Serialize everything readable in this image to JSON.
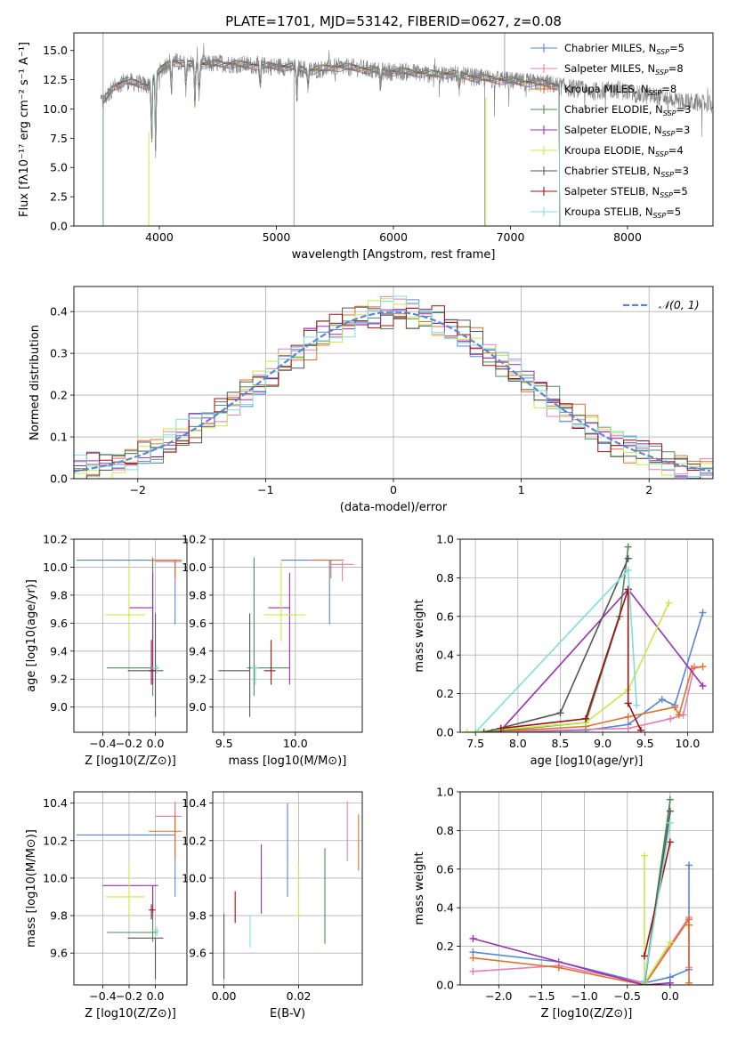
{
  "title": "PLATE=1701, MJD=53142, FIBERID=0627, z=0.08",
  "colors": {
    "chabrier_miles": "#5b86d6",
    "salpeter_miles": "#e57eb0",
    "kroupa_miles": "#e0702a",
    "chabrier_elodie": "#4f8a55",
    "salpeter_elodie": "#9a2fb0",
    "kroupa_elodie": "#c8e84a",
    "chabrier_stelib": "#555555",
    "salpeter_stelib": "#a01010",
    "kroupa_stelib": "#7fdede",
    "normal_curve": "#5b86d6"
  },
  "legend_spectrum": [
    {
      "pre": "Chabrier MILES, N",
      "sub": "SSP",
      "post": "=5",
      "color": "chabrier_miles"
    },
    {
      "pre": "Salpeter MILES, N",
      "sub": "SSP",
      "post": "=8",
      "color": "salpeter_miles"
    },
    {
      "pre": "Kroupa MILES, N",
      "sub": "SSP",
      "post": "=8",
      "color": "kroupa_miles"
    },
    {
      "pre": "Chabrier ELODIE, N",
      "sub": "SSP",
      "post": "=3",
      "color": "chabrier_elodie"
    },
    {
      "pre": "Salpeter ELODIE, N",
      "sub": "SSP",
      "post": "=3",
      "color": "salpeter_elodie"
    },
    {
      "pre": "Kroupa ELODIE, N",
      "sub": "SSP",
      "post": "=4",
      "color": "kroupa_elodie"
    },
    {
      "pre": "Chabrier STELIB, N",
      "sub": "SSP",
      "post": "=3",
      "color": "chabrier_stelib"
    },
    {
      "pre": "Salpeter STELIB, N",
      "sub": "SSP",
      "post": "=5",
      "color": "salpeter_stelib"
    },
    {
      "pre": "Kroupa STELIB, N",
      "sub": "SSP",
      "post": "=5",
      "color": "kroupa_stelib"
    }
  ],
  "legend_hist": "𝒩(0, 1)",
  "chart_data": [
    {
      "id": "spectrum",
      "type": "line",
      "xlabel": "wavelength [Angstrom, rest frame]",
      "ylabel": "Flux [fλ10⁻¹⁷ erg cm⁻² s⁻¹ A⁻¹]",
      "xlim": [
        3270,
        8730
      ],
      "ylim": [
        0,
        16.5
      ],
      "xticks": [
        4000,
        5000,
        6000,
        7000,
        8000
      ],
      "yticks": [
        0.0,
        2.5,
        5.0,
        7.5,
        10.0,
        12.5,
        15.0
      ],
      "grid": false,
      "legend": "top-right",
      "observed_envelope": {
        "x": [
          3520,
          3600,
          3700,
          3800,
          3900,
          4000,
          4100,
          4200,
          4300,
          4400,
          4500,
          4700,
          4900,
          5100,
          5300,
          5500,
          5700,
          5900,
          6100,
          6300,
          6500,
          6700,
          6900,
          7100,
          7300,
          7500,
          7700,
          7900,
          8100,
          8300,
          8500,
          8700
        ],
        "y": [
          10.6,
          11.8,
          12.4,
          12.2,
          12.0,
          13.2,
          14.2,
          13.8,
          13.9,
          13.8,
          13.9,
          13.8,
          13.7,
          13.6,
          13.3,
          13.6,
          13.5,
          13.2,
          13.2,
          13.0,
          13.0,
          12.7,
          12.5,
          12.3,
          12.2,
          11.8,
          11.5,
          11.7,
          11.2,
          11.0,
          10.6,
          10.4
        ]
      },
      "models_range": [
        3520,
        7420
      ]
    },
    {
      "id": "residuals",
      "type": "histogram",
      "xlabel": "(data-model)/error",
      "ylabel": "Normed distribution",
      "xlim": [
        -2.5,
        2.5
      ],
      "ylim": [
        0,
        0.46
      ],
      "xticks": [
        -2,
        -1,
        0,
        1,
        2
      ],
      "yticks": [
        0.0,
        0.1,
        0.2,
        0.3,
        0.4
      ],
      "grid": true,
      "bin_width": 0.1,
      "legend": "top-right"
    },
    {
      "id": "age_vs_Z",
      "type": "errorbar",
      "xlabel": "Z [log10(Z/Z⊙)]",
      "ylabel": "age  [log10(age/yr)]",
      "xlim": [
        -0.62,
        0.24
      ],
      "ylim": [
        8.82,
        10.2
      ],
      "xticks": [
        -0.4,
        -0.2,
        0.0
      ],
      "yticks": [
        9.0,
        9.2,
        9.4,
        9.6,
        9.8,
        10.0,
        10.2
      ],
      "grid": true,
      "points": [
        {
          "color": "chabrier_miles",
          "x": 0.15,
          "xerr": [
            0.75,
            0.0
          ],
          "y": 10.05,
          "yerr": [
            0.46,
            0.0
          ]
        },
        {
          "color": "salpeter_miles",
          "x": 0.15,
          "xerr": [
            0.15,
            0.05
          ],
          "y": 10.04,
          "yerr": [
            0.14,
            0.01
          ]
        },
        {
          "color": "kroupa_miles",
          "x": 0.15,
          "xerr": [
            0.2,
            0.05
          ],
          "y": 10.05,
          "yerr": [
            0.13,
            0.0
          ]
        },
        {
          "color": "chabrier_elodie",
          "x": -0.02,
          "xerr": [
            0.35,
            0.04
          ],
          "y": 9.28,
          "yerr": [
            0.2,
            0.79
          ]
        },
        {
          "color": "salpeter_elodie",
          "x": -0.02,
          "xerr": [
            0.18,
            0.0
          ],
          "y": 9.71,
          "yerr": [
            0.55,
            0.25
          ]
        },
        {
          "color": "kroupa_elodie",
          "x": -0.2,
          "xerr": [
            0.18,
            0.12
          ],
          "y": 9.66,
          "yerr": [
            0.19,
            0.38
          ]
        },
        {
          "color": "chabrier_stelib",
          "x": 0.0,
          "xerr": [
            0.21,
            0.06
          ],
          "y": 9.26,
          "yerr": [
            0.33,
            0.41
          ]
        },
        {
          "color": "salpeter_stelib",
          "x": -0.03,
          "xerr": [
            0.02,
            0.03
          ],
          "y": 9.26,
          "yerr": [
            0.1,
            0.22
          ]
        },
        {
          "color": "kroupa_stelib",
          "x": 0.01,
          "xerr": [
            0.04,
            0.02
          ],
          "y": 9.28,
          "yerr": [
            0.04,
            0.02
          ]
        }
      ]
    },
    {
      "id": "age_vs_mass",
      "type": "errorbar",
      "xlabel": "mass [log10(M/M⊙)]",
      "ylabel": "",
      "xlim": [
        9.42,
        10.47
      ],
      "ylim": [
        8.82,
        10.2
      ],
      "xticks": [
        9.5,
        10.0
      ],
      "yticks": [
        9.0,
        9.2,
        9.4,
        9.6,
        9.8,
        10.0,
        10.2
      ],
      "grid": true,
      "points": [
        {
          "color": "chabrier_miles",
          "x": 10.24,
          "xerr": [
            0.34,
            0.0
          ],
          "y": 10.05,
          "yerr": [
            0.46,
            0.0
          ]
        },
        {
          "color": "salpeter_miles",
          "x": 10.33,
          "xerr": [
            0.08,
            0.08
          ],
          "y": 10.02,
          "yerr": [
            0.12,
            0.02
          ]
        },
        {
          "color": "kroupa_miles",
          "x": 10.25,
          "xerr": [
            0.14,
            0.09
          ],
          "y": 10.05,
          "yerr": [
            0.13,
            0.0
          ]
        },
        {
          "color": "chabrier_elodie",
          "x": 9.71,
          "xerr": [
            0.05,
            0.25
          ],
          "y": 9.28,
          "yerr": [
            0.2,
            0.79
          ]
        },
        {
          "color": "salpeter_elodie",
          "x": 9.96,
          "xerr": [
            0.15,
            0.0
          ],
          "y": 9.71,
          "yerr": [
            0.55,
            0.25
          ]
        },
        {
          "color": "kroupa_elodie",
          "x": 9.9,
          "xerr": [
            0.12,
            0.17
          ],
          "y": 9.66,
          "yerr": [
            0.19,
            0.38
          ]
        },
        {
          "color": "chabrier_stelib",
          "x": 9.68,
          "xerr": [
            0.22,
            0.0
          ],
          "y": 9.26,
          "yerr": [
            0.33,
            0.41
          ]
        },
        {
          "color": "salpeter_stelib",
          "x": 9.83,
          "xerr": [
            0.05,
            0.03
          ],
          "y": 9.26,
          "yerr": [
            0.1,
            0.22
          ]
        },
        {
          "color": "kroupa_stelib",
          "x": 9.72,
          "xerr": [
            0.03,
            0.02
          ],
          "y": 9.28,
          "yerr": [
            0.12,
            0.02
          ]
        }
      ]
    },
    {
      "id": "massweight_vs_age",
      "type": "line",
      "xlabel": "age  [log10(age/yr)]",
      "ylabel": "mass weight",
      "xlim": [
        7.32,
        10.3
      ],
      "ylim": [
        0,
        1.0
      ],
      "xticks": [
        7.5,
        8.0,
        8.5,
        9.0,
        9.5,
        10.0
      ],
      "yticks": [
        0.0,
        0.2,
        0.4,
        0.6,
        0.8,
        1.0
      ],
      "grid": true,
      "series": [
        {
          "color": "chabrier_miles",
          "x": [
            7.7,
            8.8,
            9.3,
            9.7,
            9.85,
            10.18
          ],
          "y": [
            0.0,
            0.01,
            0.04,
            0.17,
            0.14,
            0.62
          ]
        },
        {
          "color": "salpeter_miles",
          "x": [
            7.5,
            9.3,
            9.8,
            9.95,
            10.08
          ],
          "y": [
            0.0,
            0.02,
            0.07,
            0.09,
            0.34
          ]
        },
        {
          "color": "kroupa_miles",
          "x": [
            7.6,
            8.8,
            9.3,
            9.85,
            9.9,
            10.05,
            10.18
          ],
          "y": [
            0.0,
            0.03,
            0.08,
            0.13,
            0.09,
            0.33,
            0.34
          ]
        },
        {
          "color": "chabrier_elodie",
          "x": [
            7.6,
            8.8,
            9.2,
            9.3
          ],
          "y": [
            0.0,
            0.05,
            0.6,
            0.96
          ]
        },
        {
          "color": "salpeter_elodie",
          "x": [
            7.8,
            9.3,
            10.18
          ],
          "y": [
            0.01,
            0.74,
            0.24
          ]
        },
        {
          "color": "kroupa_elodie",
          "x": [
            7.4,
            8.8,
            9.3,
            9.78
          ],
          "y": [
            0.0,
            0.05,
            0.22,
            0.67
          ]
        },
        {
          "color": "chabrier_stelib",
          "x": [
            7.6,
            8.5,
            9.3
          ],
          "y": [
            0.0,
            0.1,
            0.9
          ]
        },
        {
          "color": "salpeter_stelib",
          "x": [
            7.8,
            8.8,
            9.3,
            9.3,
            9.45
          ],
          "y": [
            0.02,
            0.07,
            0.74,
            0.15,
            0.01
          ]
        },
        {
          "color": "kroupa_stelib",
          "x": [
            7.5,
            9.3,
            9.4
          ],
          "y": [
            0.0,
            0.84,
            0.14
          ]
        }
      ]
    },
    {
      "id": "mass_vs_Z",
      "type": "errorbar",
      "xlabel": "Z [log10(Z/Z⊙)]",
      "ylabel": "mass [log10(M/M⊙)]",
      "xlim": [
        -0.62,
        0.24
      ],
      "ylim": [
        9.43,
        10.46
      ],
      "xticks": [
        -0.4,
        -0.2,
        0.0
      ],
      "yticks": [
        9.6,
        9.8,
        10.0,
        10.2,
        10.4
      ],
      "grid": true,
      "points": [
        {
          "color": "chabrier_miles",
          "x": 0.15,
          "xerr": [
            0.75,
            0.0
          ],
          "y": 10.23,
          "yerr": [
            0.33,
            0.17
          ]
        },
        {
          "color": "salpeter_miles",
          "x": 0.15,
          "xerr": [
            0.15,
            0.05
          ],
          "y": 10.33,
          "yerr": [
            0.09,
            0.08
          ]
        },
        {
          "color": "kroupa_miles",
          "x": 0.15,
          "xerr": [
            0.2,
            0.05
          ],
          "y": 10.25,
          "yerr": [
            0.14,
            0.09
          ]
        },
        {
          "color": "chabrier_elodie",
          "x": -0.02,
          "xerr": [
            0.35,
            0.04
          ],
          "y": 9.71,
          "yerr": [
            0.05,
            0.25
          ]
        },
        {
          "color": "salpeter_elodie",
          "x": -0.02,
          "xerr": [
            0.38,
            0.04
          ],
          "y": 9.96,
          "yerr": [
            0.15,
            0.0
          ]
        },
        {
          "color": "kroupa_elodie",
          "x": -0.2,
          "xerr": [
            0.18,
            0.12
          ],
          "y": 9.9,
          "yerr": [
            0.12,
            0.17
          ]
        },
        {
          "color": "chabrier_stelib",
          "x": 0.0,
          "xerr": [
            0.21,
            0.06
          ],
          "y": 9.68,
          "yerr": [
            0.22,
            0.0
          ]
        },
        {
          "color": "salpeter_stelib",
          "x": -0.03,
          "xerr": [
            0.02,
            0.03
          ],
          "y": 9.83,
          "yerr": [
            0.05,
            0.03
          ]
        },
        {
          "color": "kroupa_stelib",
          "x": 0.01,
          "xerr": [
            0.04,
            0.02
          ],
          "y": 9.72,
          "yerr": [
            0.03,
            0.02
          ]
        }
      ]
    },
    {
      "id": "mass_vs_EBV",
      "type": "errorbar",
      "xlabel": "E(B-V)",
      "ylabel": "",
      "xlim": [
        -0.003,
        0.037
      ],
      "ylim": [
        9.43,
        10.46
      ],
      "xticks": [
        0.0,
        0.02
      ],
      "yticks": [
        9.6,
        9.8,
        10.0,
        10.2,
        10.4
      ],
      "grid": true,
      "points": [
        {
          "color": "chabrier_stelib",
          "x": 0.0,
          "y": 9.68,
          "yerr": [
            0.22,
            0.13
          ]
        },
        {
          "color": "salpeter_stelib",
          "x": 0.003,
          "y": 9.83,
          "yerr": [
            0.07,
            0.1
          ]
        },
        {
          "color": "kroupa_stelib",
          "x": 0.007,
          "y": 9.72,
          "yerr": [
            0.09,
            0.08
          ]
        },
        {
          "color": "salpeter_elodie",
          "x": 0.01,
          "y": 9.96,
          "yerr": [
            0.15,
            0.22
          ]
        },
        {
          "color": "chabrier_miles",
          "x": 0.017,
          "y": 10.23,
          "yerr": [
            0.33,
            0.17
          ]
        },
        {
          "color": "kroupa_elodie",
          "x": 0.02,
          "y": 9.9,
          "yerr": [
            0.12,
            0.17
          ]
        },
        {
          "color": "chabrier_elodie",
          "x": 0.027,
          "y": 9.71,
          "yerr": [
            0.06,
            0.45
          ]
        },
        {
          "color": "salpeter_miles",
          "x": 0.033,
          "y": 10.33,
          "yerr": [
            0.24,
            0.08
          ]
        },
        {
          "color": "kroupa_miles",
          "x": 0.036,
          "y": 10.25,
          "yerr": [
            0.21,
            0.09
          ]
        }
      ]
    },
    {
      "id": "massweight_vs_Z",
      "type": "line",
      "xlabel": "Z [log10(Z/Z⊙)]",
      "ylabel": "mass weight",
      "xlim": [
        -2.45,
        0.5
      ],
      "ylim": [
        0,
        1.0
      ],
      "xticks": [
        -2.0,
        -1.5,
        -1.0,
        -0.5,
        0.0
      ],
      "yticks": [
        0.0,
        0.2,
        0.4,
        0.6,
        0.8,
        1.0
      ],
      "grid": true,
      "series": [
        {
          "color": "chabrier_miles",
          "x": [
            -2.3,
            -1.3,
            -0.3,
            0.0,
            0.22,
            0.22
          ],
          "y": [
            0.17,
            0.12,
            0.01,
            0.04,
            0.08,
            0.62
          ]
        },
        {
          "color": "salpeter_miles",
          "x": [
            -2.3,
            -1.3,
            -0.3,
            0.22,
            0.22
          ],
          "y": [
            0.07,
            0.1,
            0.01,
            0.35,
            0.09
          ]
        },
        {
          "color": "kroupa_miles",
          "x": [
            -2.3,
            -1.3,
            -0.3,
            0.22,
            0.22,
            0.22
          ],
          "y": [
            0.14,
            0.09,
            0.0,
            0.34,
            0.01,
            0.31
          ]
        },
        {
          "color": "chabrier_elodie",
          "x": [
            -0.3,
            0.0
          ],
          "y": [
            0.01,
            0.96
          ]
        },
        {
          "color": "salpeter_elodie",
          "x": [
            -2.3,
            -0.3,
            0.0
          ],
          "y": [
            0.24,
            0.0,
            0.01
          ]
        },
        {
          "color": "kroupa_elodie",
          "x": [
            -0.3,
            -0.3,
            0.0
          ],
          "y": [
            0.67,
            0.01,
            0.22
          ]
        },
        {
          "color": "chabrier_stelib",
          "x": [
            -0.3,
            0.0
          ],
          "y": [
            0.0,
            0.9
          ]
        },
        {
          "color": "salpeter_stelib",
          "x": [
            -0.3,
            0.0
          ],
          "y": [
            0.15,
            0.74
          ]
        },
        {
          "color": "kroupa_stelib",
          "x": [
            -0.3,
            0.0
          ],
          "y": [
            0.02,
            0.84
          ]
        }
      ]
    }
  ]
}
